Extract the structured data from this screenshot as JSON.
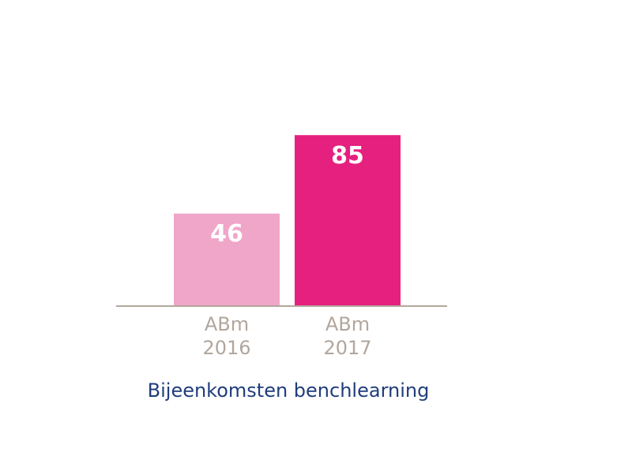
{
  "chart_data": {
    "type": "bar",
    "title": "Bijeenkomsten benchlearning",
    "categories": [
      "ABm\n2016",
      "ABm\n2017"
    ],
    "values": [
      46,
      85
    ],
    "colors": [
      "#f0a6c9",
      "#e5207f"
    ],
    "ylim": [
      0,
      100
    ]
  }
}
